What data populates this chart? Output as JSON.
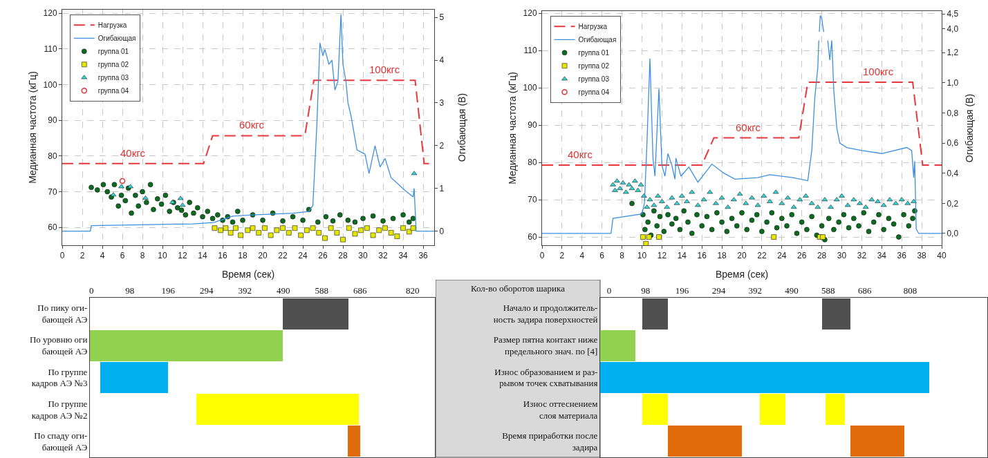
{
  "chart_data": [
    {
      "type": "line",
      "xlabel": "Время (сек)",
      "ylabel": "Медианная частота (кГц)",
      "y2label": "Огибающая (В)",
      "xlim": [
        0,
        37.1
      ],
      "xticks": [
        0,
        2,
        4,
        6,
        8,
        10,
        12,
        14,
        16,
        18,
        20,
        22,
        24,
        26,
        28,
        30,
        32,
        34,
        36
      ],
      "ylim": [
        55,
        121
      ],
      "yticks": [
        60,
        70,
        80,
        90,
        100,
        110,
        120
      ],
      "y2lim": [
        -0.33,
        5.18
      ],
      "y2ticks": [
        0,
        1,
        2,
        3,
        4,
        5
      ],
      "grid": true,
      "legend": "top left",
      "annotations": [
        {
          "text": "40кгс",
          "x": 7.0,
          "y": 77.9
        },
        {
          "text": "60кгс",
          "x": 18.9,
          "y": 85.7
        },
        {
          "text": "100кгс",
          "x": 32.2,
          "y": 101.2
        }
      ],
      "series": [
        {
          "name": "Нагрузка",
          "type": "line",
          "line_style": "dashed",
          "color": "#e8383d",
          "x": [
            0,
            14.1,
            15.0,
            24.2,
            25.1,
            35.2,
            36.1,
            37.1
          ],
          "values": [
            77.9,
            77.9,
            85.7,
            85.7,
            101.2,
            101.2,
            77.9,
            77.9
          ]
        },
        {
          "name": "Огибающая",
          "type": "line",
          "line_style": "solid",
          "axis": "y2",
          "color": "#3d8fe0",
          "x": [
            0,
            2.8,
            2.9,
            8,
            13,
            15.1,
            17,
            19,
            21,
            23,
            24.6,
            25.0,
            25.4,
            25.7,
            26.0,
            26.2,
            26.6,
            26.9,
            27.2,
            27.5,
            27.8,
            28.0,
            28.3,
            28.5,
            28.8,
            29.4,
            30.2,
            30.6,
            31.2,
            31.7,
            32.2,
            32.8,
            34.2,
            35.0,
            35.1,
            35.3,
            37.1
          ],
          "values": [
            0,
            0,
            0.13,
            0.15,
            0.17,
            0.2,
            0.35,
            0.38,
            0.4,
            0.42,
            0.46,
            0.6,
            2.5,
            4.4,
            4.1,
            4.25,
            3.9,
            4.0,
            3.3,
            3.5,
            5.07,
            3.9,
            3.5,
            3.0,
            2.7,
            1.9,
            1.8,
            1.35,
            2.0,
            1.5,
            1.7,
            1.25,
            0.95,
            0.8,
            1.0,
            0,
            0
          ]
        },
        {
          "name": "группа 01",
          "type": "scatter",
          "marker": "circle",
          "color": "#0b6b1e",
          "x": [
            2.9,
            3.5,
            4.1,
            4.5,
            4.9,
            5.2,
            5.6,
            5.9,
            6.3,
            6.6,
            6.9,
            7.3,
            7.6,
            8,
            8.4,
            8.8,
            9.1,
            9.5,
            9.9,
            10.3,
            10.7,
            11.1,
            11.5,
            11.9,
            12.3,
            12.7,
            13.1,
            13.5,
            14,
            14.5,
            15,
            15.5,
            16,
            16.5,
            17,
            17.5,
            18,
            19,
            20,
            21,
            22,
            23,
            24,
            24.6,
            25.5,
            26.3,
            27,
            27.7,
            28.5,
            29.2,
            30,
            31,
            32,
            33,
            34,
            34.6,
            35
          ],
          "values": [
            71.2,
            70.5,
            72,
            70,
            68.5,
            72,
            66,
            69,
            67.5,
            71,
            64,
            69,
            66,
            70,
            67,
            72,
            65,
            68,
            66.5,
            69,
            64.5,
            67,
            65.5,
            64.8,
            63.5,
            67,
            64,
            65.5,
            63,
            64.5,
            62.5,
            63.5,
            62,
            63,
            61.5,
            64.5,
            62,
            63.5,
            62,
            64,
            61.8,
            63,
            62,
            65,
            61.5,
            63,
            61.8,
            63.5,
            62,
            61.5,
            62.5,
            63.2,
            61.8,
            62.5,
            63.5,
            61.5,
            62.5
          ]
        },
        {
          "name": "группа 02",
          "type": "scatter",
          "marker": "square",
          "color": "#e6e600",
          "x": [
            15.2,
            15.8,
            16.3,
            16.8,
            17.3,
            17.8,
            18.5,
            19,
            19.6,
            20.2,
            20.8,
            21.4,
            22,
            22.6,
            23.2,
            23.8,
            24.4,
            25,
            25.6,
            26.2,
            26.8,
            27.4,
            28,
            28.6,
            29.2,
            29.8,
            30.4,
            31,
            31.6,
            32.2,
            32.8,
            33.4,
            34,
            34.6,
            35
          ],
          "values": [
            59.8,
            59.2,
            59.8,
            58.5,
            59.8,
            57.8,
            59.2,
            59.8,
            58.5,
            59.8,
            57.8,
            59.2,
            59.8,
            58.5,
            59.8,
            57.8,
            59.2,
            59.8,
            58.5,
            57,
            59.8,
            58.5,
            56.6,
            59.8,
            58.2,
            59.2,
            59.8,
            57.8,
            59.2,
            59.8,
            58.5,
            57.5,
            59.8,
            58.8,
            59.8
          ]
        },
        {
          "name": "группа 03",
          "type": "scatter",
          "marker": "triangle",
          "color": "#33d6d6",
          "x": [
            5.1,
            5.9,
            6.8,
            8.3,
            11.0,
            11.8,
            12.0,
            35.1
          ],
          "values": [
            69.1,
            71.4,
            71.4,
            68.2,
            67,
            68.1,
            66.2,
            75.1
          ]
        },
        {
          "name": "группа 04",
          "type": "scatter",
          "marker": "circle-open",
          "color": "#e03030",
          "x": [
            6.0
          ],
          "values": [
            73
          ]
        }
      ]
    },
    {
      "type": "line",
      "xlabel": "Время (сек)",
      "ylabel": "Медианная частота (кГц)",
      "y2label": "Огибающая (В)",
      "xlim": [
        0,
        40
      ],
      "xticks": [
        0,
        2,
        4,
        6,
        8,
        10,
        12,
        14,
        16,
        18,
        20,
        22,
        24,
        26,
        28,
        30,
        32,
        34,
        36,
        38,
        40
      ],
      "ylim": [
        57.8,
        120.6
      ],
      "yticks": [
        60,
        70,
        80,
        90,
        100,
        110,
        120
      ],
      "y2lim": [
        -0.078,
        1.475
      ],
      "y2ticks": [
        {
          "value": 0,
          "label": "0,0"
        },
        {
          "value": 0.2,
          "label": "0,2"
        },
        {
          "value": 0.4,
          "label": "0,4"
        },
        {
          "value": 0.6,
          "label": "0,6"
        },
        {
          "value": 0.8,
          "label": "0,8"
        },
        {
          "value": 1.0,
          "label": "1,0"
        },
        {
          "value": 1.2,
          "label": "1,2"
        }
      ],
      "y3lim": [
        -3.3,
        4.6
      ],
      "y3ticks": [
        {
          "value": 4.0,
          "label": "4,0"
        },
        {
          "value": 4.5,
          "label": "4,5"
        }
      ],
      "grid": true,
      "legend": "top left",
      "annotations": [
        {
          "text": "40кгс",
          "x": 3.8,
          "y": 79.3
        },
        {
          "text": "60кгс",
          "x": 20.6,
          "y": 86.6
        },
        {
          "text": "100кгс",
          "x": 33.7,
          "y": 101.5
        }
      ],
      "series": [
        {
          "name": "Нагрузка",
          "type": "line",
          "line_style": "dashed",
          "color": "#e8383d",
          "x": [
            0,
            16.0,
            17.2,
            25.7,
            26.6,
            37.1,
            38.1,
            40
          ],
          "values": [
            79.3,
            79.3,
            86.6,
            86.6,
            101.5,
            101.5,
            79.3,
            79.3
          ]
        },
        {
          "name": "Огибающая",
          "type": "line",
          "line_style": "solid",
          "axis": "y2",
          "color": "#3d8fe0",
          "x": [
            0,
            6.9,
            7.1,
            10.0,
            10.25,
            10.5,
            10.8,
            11.1,
            11.3,
            11.7,
            12.0,
            12.3,
            12.6,
            13.0,
            13.3,
            13.4,
            13.9,
            14.7,
            15.6,
            17.0,
            18.2,
            19.3,
            21.6,
            22.8,
            25.1,
            26.6,
            27.0,
            27.3,
            27.6,
            27.7,
            27.75,
            28.6,
            28.8,
            29.0,
            29.2,
            29.5,
            29.8,
            30.5,
            32,
            34,
            36.5,
            37.0,
            37.2,
            37.3,
            37.45,
            37.7,
            40
          ],
          "values": [
            0,
            0,
            0.1,
            0.13,
            0.2,
            0.6,
            1.16,
            0.5,
            0.38,
            0.96,
            0.45,
            0.38,
            0.53,
            0.45,
            0.36,
            0.5,
            0.38,
            0.44,
            0.34,
            0.46,
            0.4,
            0.36,
            0.37,
            0.39,
            0.37,
            0.35,
            0.55,
            0.9,
            1.1,
            1.28,
            null,
            1.28,
            1.15,
            1.28,
            0.95,
            0.7,
            0.6,
            0.57,
            0.55,
            0.53,
            0.57,
            0.55,
            0.37,
            0.48,
            0.03,
            0,
            0
          ]
        },
        {
          "type": "line",
          "line_style": "solid",
          "axis": "y3",
          "color": "#3d8fe0",
          "x": [
            27.75,
            27.85,
            28.0,
            28.1,
            28.2
          ],
          "values": [
            3.9,
            4.45,
            4.35,
            4.1,
            3.9
          ]
        },
        {
          "name": "группа 01",
          "type": "scatter",
          "marker": "circle",
          "color": "#0b6b1e",
          "x": [
            9.0,
            10.1,
            10.3,
            10.6,
            10.9,
            11.2,
            11.5,
            11.8,
            12.2,
            12.6,
            13,
            13.4,
            13.8,
            14.2,
            14.6,
            15,
            15.5,
            16,
            16.5,
            17,
            17.5,
            18,
            18.5,
            19,
            19.5,
            20,
            20.5,
            21,
            21.5,
            22,
            22.5,
            23,
            23.5,
            24,
            24.5,
            25,
            25.5,
            26,
            26.5,
            27,
            27.5,
            28,
            28.3,
            28.7,
            29.2,
            29.7,
            30.2,
            30.7,
            31.2,
            31.7,
            32.2,
            32.7,
            33.2,
            33.7,
            34.2,
            34.7,
            35.2,
            35.7,
            36.2,
            36.7,
            37.1,
            37.3
          ],
          "values": [
            69,
            66,
            62,
            64,
            60.5,
            67,
            63,
            65.5,
            61.5,
            66,
            63.5,
            65,
            62,
            67,
            64,
            61,
            66,
            63,
            65.5,
            62,
            66.5,
            64,
            61.5,
            65,
            63,
            66.5,
            62,
            64.5,
            66,
            61.5,
            64,
            66.5,
            62.5,
            65,
            63,
            66,
            61,
            64,
            62,
            65.5,
            60.5,
            63,
            59.3,
            65,
            62,
            64,
            66,
            62.5,
            65,
            63,
            66.5,
            61.5,
            64,
            66,
            62,
            65,
            63.5,
            60,
            66,
            63,
            65,
            67
          ]
        },
        {
          "name": "группа 02",
          "type": "scatter",
          "marker": "square",
          "color": "#e6e600",
          "x": [
            10.1,
            10.4,
            10.7,
            11.7,
            23.2,
            27.8,
            28.1
          ],
          "values": [
            60,
            58.2,
            60,
            60,
            60,
            60,
            60
          ]
        },
        {
          "name": "группа 03",
          "type": "scatter",
          "marker": "triangle",
          "color": "#33d6d6",
          "x": [
            7.1,
            7.3,
            7.5,
            7.8,
            8.1,
            8.4,
            8.7,
            9,
            9.3,
            9.6,
            9.9,
            10.2,
            10.5,
            10.8,
            11.2,
            11.6,
            12,
            12.5,
            13,
            13.5,
            14,
            14.5,
            15,
            15.6,
            16.2,
            16.8,
            17.4,
            18,
            18.6,
            19.2,
            19.8,
            20.4,
            21,
            21.6,
            22.2,
            22.8,
            23.4,
            24,
            24.6,
            25.2,
            25.8,
            26.4,
            27,
            27.6,
            28.3,
            28.9,
            29.5,
            30,
            30.6,
            31.2,
            31.8,
            32.4,
            33,
            33.6,
            34.2,
            34.8,
            35.4,
            36,
            36.6,
            37.2
          ],
          "values": [
            74,
            72.5,
            75,
            73,
            74.5,
            72,
            74,
            73,
            75,
            72.5,
            74,
            71,
            68,
            70,
            68.5,
            71,
            69.5,
            68,
            70.5,
            69,
            71,
            69.5,
            72,
            68.5,
            70,
            72,
            69,
            70.5,
            68,
            70,
            71.5,
            69,
            70.5,
            68.5,
            71,
            69.5,
            72,
            69,
            70.5,
            68,
            70,
            71,
            69,
            68,
            70,
            68,
            70,
            71,
            68.5,
            70,
            69,
            68,
            70,
            69.5,
            68.5,
            70,
            69,
            70,
            69,
            69.5
          ]
        },
        {
          "name": "группа 04",
          "type": "scatter",
          "marker": "circle-open",
          "color": "#e03030"
        }
      ]
    },
    {
      "type": "bar",
      "orientation": "horizontal",
      "categories": [
        "По пику оги-\nбающей АЭ",
        "По уровню оги\nбающей АЭ",
        "По группе\nкадров АЭ №3",
        "По группе\nкадров АЭ №2",
        "По спаду оги-\nбающей АЭ"
      ],
      "xlim": [
        -4,
        877
      ],
      "xticks": [
        0,
        98,
        196,
        294,
        392,
        490,
        588,
        686,
        820
      ],
      "base": [
        488,
        -4,
        22,
        268,
        655
      ],
      "values": [
        169,
        492,
        174,
        415,
        31
      ],
      "colors": [
        "#505050",
        "#92d050",
        "#00b0f0",
        "#ffff00",
        "#e26b0a"
      ]
    },
    {
      "type": "bar",
      "orientation": "horizontal",
      "ylabel": "Кол-во оборотов шарика",
      "categories": [
        "Начало и продолжитель-\nность задира поверхностей",
        "Размер пятна контакт ниже\nпредельного знач. по [4]",
        "Износ образованием и раз-\nрывом точек схватывания",
        "Износ оттеснением\nслоя материала",
        "Время приработки после\nзадира"
      ],
      "xlim": [
        -24,
        1015
      ],
      "xticks": [
        0,
        98,
        196,
        294,
        392,
        490,
        588,
        686,
        808
      ],
      "series": [
        {
          "base": [
            89,
            -24,
            -24,
            89,
            158
          ],
          "values": [
            69,
            94,
            883,
            69,
            199
          ],
          "colors": [
            "#505050",
            "#92d050",
            "#00b0f0",
            "#ffff00",
            "#e26b0a"
          ]
        },
        {
          "base": [
            572,
            null,
            null,
            404,
            647
          ],
          "values": [
            75,
            null,
            null,
            69,
            145
          ],
          "colors": [
            "#505050",
            null,
            null,
            "#ffff00",
            "#e26b0a"
          ]
        },
        {
          "base": [
            null,
            null,
            null,
            581,
            null
          ],
          "values": [
            null,
            null,
            null,
            51,
            null
          ],
          "colors": [
            null,
            null,
            null,
            "#ffff00",
            null
          ]
        }
      ]
    }
  ]
}
